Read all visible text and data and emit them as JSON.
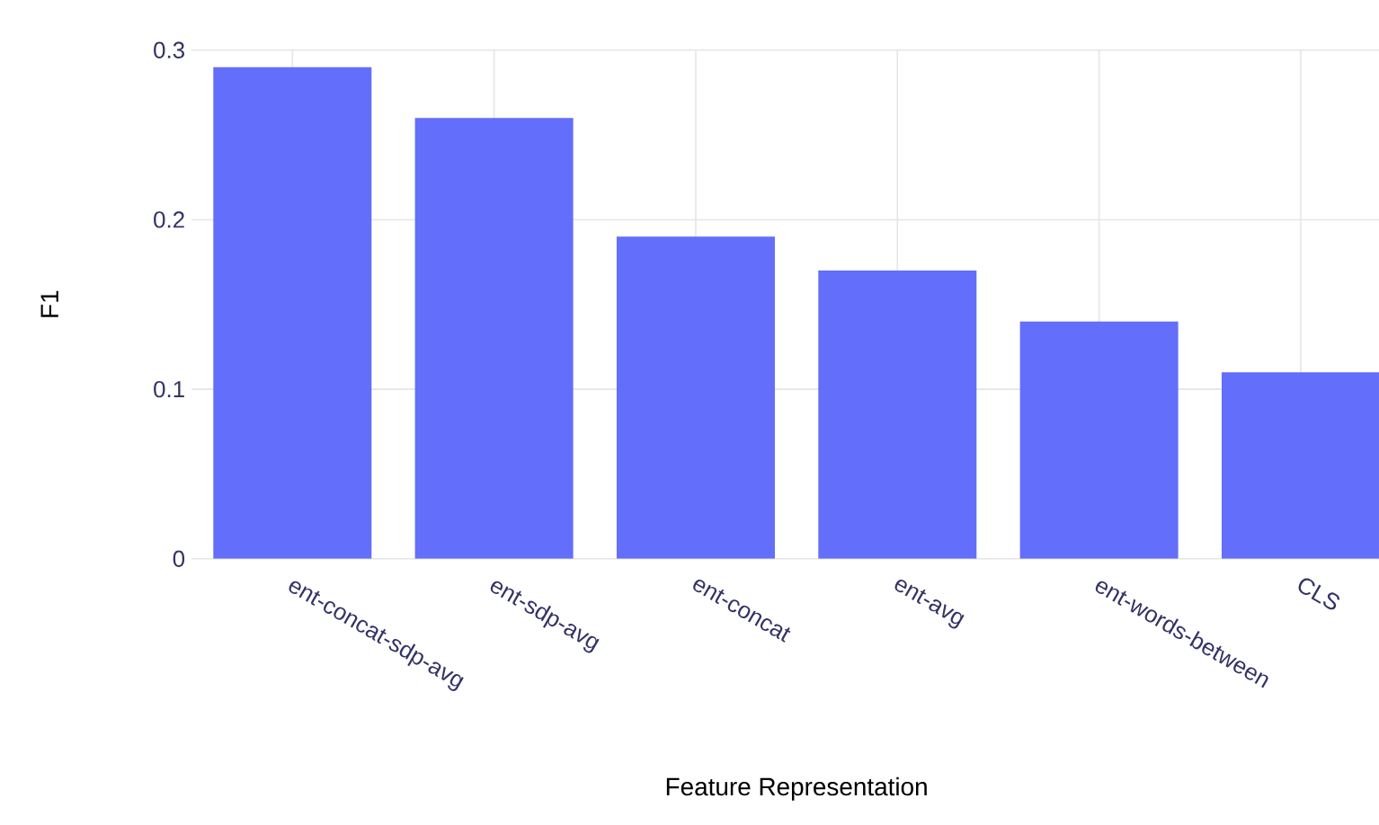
{
  "chart_data": {
    "type": "bar",
    "categories": [
      "ent-concat-sdp-avg",
      "ent-sdp-avg",
      "ent-concat",
      "ent-avg",
      "ent-words-between",
      "CLS"
    ],
    "values": [
      0.29,
      0.26,
      0.19,
      0.17,
      0.14,
      0.11
    ],
    "color": "#636efa",
    "xlabel": "Feature Representation",
    "ylabel": "F1",
    "ylim": [
      0,
      0.3
    ],
    "yticks": [
      0,
      0.1,
      0.2,
      0.3
    ],
    "grid": true
  }
}
